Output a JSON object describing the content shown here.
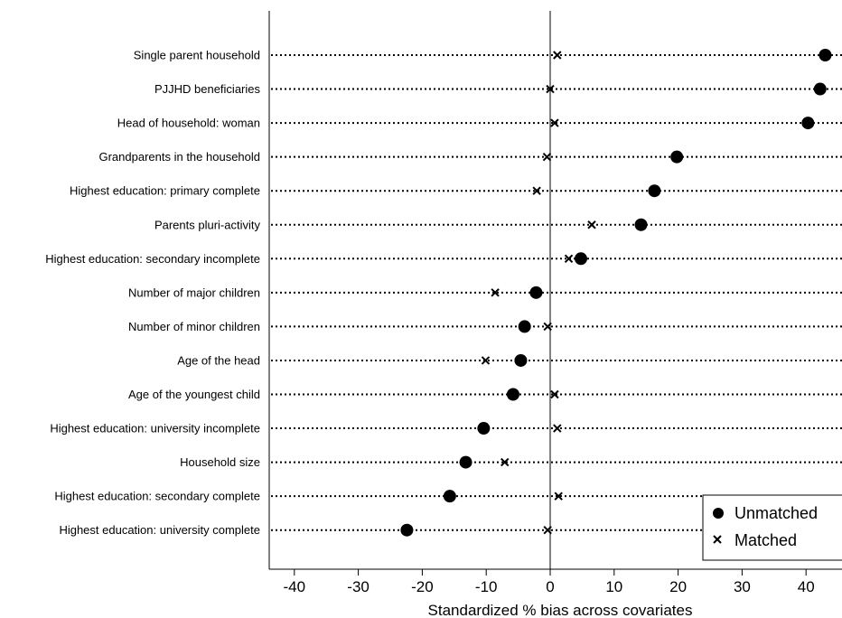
{
  "chart_data": {
    "type": "scatter",
    "xlabel": "Standardized % bias across covariates",
    "xlim": [
      -43,
      46
    ],
    "xticks": [
      -40,
      -30,
      -20,
      -10,
      0,
      10,
      20,
      30,
      40
    ],
    "xtick_labels": [
      "-40",
      "-30",
      "-20",
      "-10",
      "0",
      "10",
      "20",
      "30",
      "40"
    ],
    "reference_line_x": 0,
    "categories": [
      "Single parent household",
      "PJJHD beneficiaries",
      "Head of household: woman",
      "Grandparents in the household",
      "Highest education: primary complete",
      "Parents pluri-activity",
      "Highest education: secondary incomplete",
      "Number of major children",
      "Number of minor children",
      "Age of the head",
      "Age of the youngest child",
      "Highest education: university incomplete",
      "Household size",
      "Highest education: secondary complete",
      "Highest education: university complete"
    ],
    "series": [
      {
        "name": "Unmatched",
        "marker": "circle",
        "values": [
          43.0,
          42.2,
          40.3,
          19.8,
          16.3,
          14.2,
          4.8,
          -2.2,
          -4.0,
          -4.6,
          -5.8,
          -10.4,
          -13.2,
          -15.7,
          -22.4
        ]
      },
      {
        "name": "Matched",
        "marker": "x",
        "values": [
          1.1,
          0.0,
          0.7,
          -0.5,
          -2.1,
          6.5,
          2.9,
          -8.6,
          -0.4,
          -10.1,
          0.7,
          1.1,
          -7.1,
          1.3,
          -0.4
        ]
      }
    ],
    "legend_position": "bottom-right",
    "grid": false
  }
}
